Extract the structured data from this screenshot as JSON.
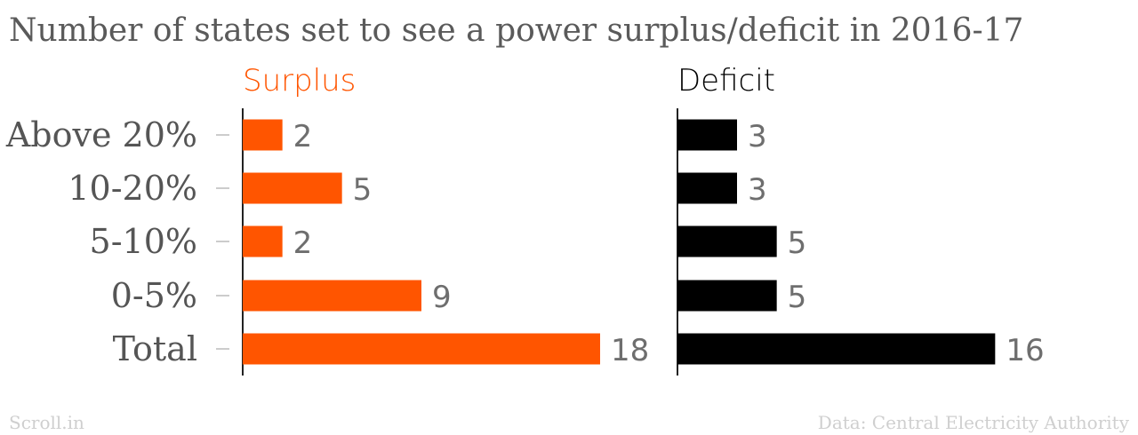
{
  "chart_data": {
    "type": "bar",
    "orientation": "horizontal",
    "title": "Number of states set to see a power surplus/deficit in 2016-17",
    "categories": [
      "Above 20%",
      "10-20%",
      "5-10%",
      "0-5%",
      "Total"
    ],
    "series": [
      {
        "name": "Surplus",
        "values": [
          2,
          5,
          2,
          9,
          18
        ],
        "color": "#ff5500"
      },
      {
        "name": "Deficit",
        "values": [
          3,
          3,
          5,
          5,
          16
        ],
        "color": "#000000"
      }
    ],
    "xlim": [
      0,
      18
    ],
    "grid": false,
    "legend": "none"
  },
  "footer": {
    "source_left": "Scroll.in",
    "source_right": "Data: Central Electricity Authority"
  },
  "colors": {
    "title": "#5a5a5a",
    "category_label": "#555555",
    "value_label": "#6e6e6e",
    "axis": "#222222",
    "tick": "#cccccc",
    "footer": "#cfcfcf"
  }
}
